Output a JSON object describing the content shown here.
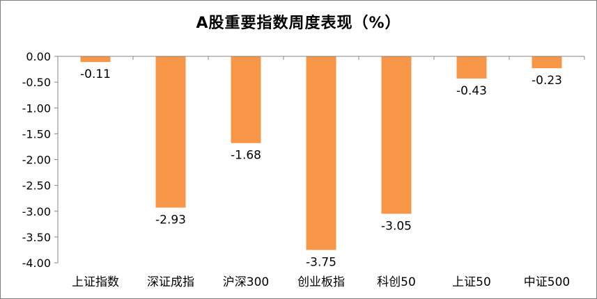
{
  "chart_data": {
    "type": "bar",
    "title": "A股重要指数周度表现（%）",
    "categories": [
      "上证指数",
      "深证成指",
      "沪深300",
      "创业板指",
      "科创50",
      "上证50",
      "中证500"
    ],
    "values": [
      -0.11,
      -2.93,
      -1.68,
      -3.75,
      -3.05,
      -0.43,
      -0.23
    ],
    "data_labels": [
      "-0.11",
      "-2.93",
      "-1.68",
      "-3.75",
      "-3.05",
      "-0.43",
      "-0.23"
    ],
    "ylim": [
      -4.0,
      0.0
    ],
    "yticks": [
      0.0,
      -0.5,
      -1.0,
      -1.5,
      -2.0,
      -2.5,
      -3.0,
      -3.5,
      -4.0
    ],
    "ytick_labels": [
      "0.00",
      "-0.50",
      "-1.00",
      "-1.50",
      "-2.00",
      "-2.50",
      "-3.00",
      "-3.50",
      "-4.00"
    ],
    "xlabel": "",
    "ylabel": "",
    "grid": false,
    "legend": "none",
    "bar_color": "#F79646"
  }
}
